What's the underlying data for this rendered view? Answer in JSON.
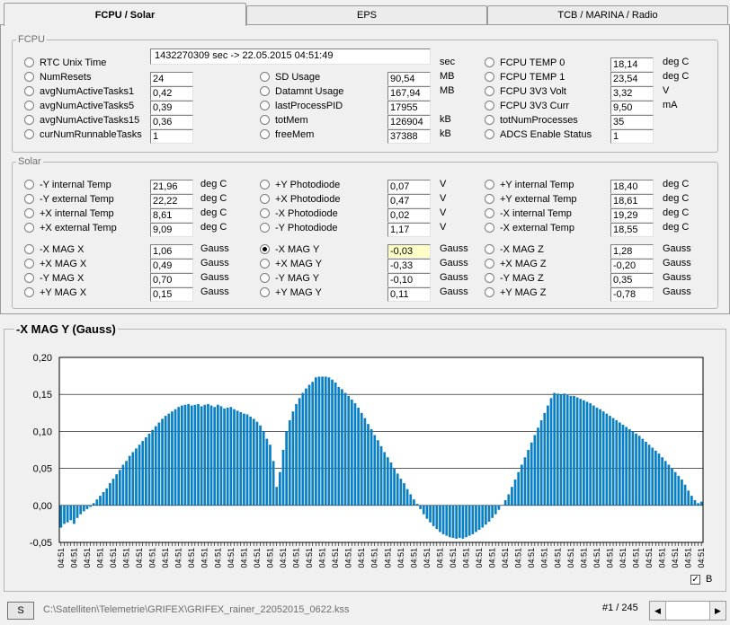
{
  "tabs": [
    "FCPU / Solar",
    "EPS",
    "TCB / MARINA / Radio"
  ],
  "fcpu": {
    "title": "FCPU",
    "rtc": {
      "label": "RTC Unix Time",
      "value": "1432270309 sec  -> 22.05.2015 04:51:49",
      "unit": "sec"
    },
    "col1": [
      {
        "label": "NumResets",
        "value": "24",
        "unit": ""
      },
      {
        "label": "avgNumActiveTasks1",
        "value": "0,42",
        "unit": ""
      },
      {
        "label": "avgNumActiveTasks5",
        "value": "0,39",
        "unit": ""
      },
      {
        "label": "avgNumActiveTasks15",
        "value": "0,36",
        "unit": ""
      },
      {
        "label": "curNumRunnableTasks",
        "value": "1",
        "unit": ""
      }
    ],
    "col2": [
      {
        "label": "SD Usage",
        "value": "90,54",
        "unit": "MB"
      },
      {
        "label": "Datamnt Usage",
        "value": "167,94",
        "unit": "MB"
      },
      {
        "label": "lastProcessPID",
        "value": "17955",
        "unit": ""
      },
      {
        "label": "totMem",
        "value": "126904",
        "unit": "kB"
      },
      {
        "label": "freeMem",
        "value": "37388",
        "unit": "kB"
      }
    ],
    "col3": [
      {
        "label": "FCPU TEMP 0",
        "value": "18,14",
        "unit": "deg C"
      },
      {
        "label": "FCPU TEMP 1",
        "value": "23,54",
        "unit": "deg C"
      },
      {
        "label": "FCPU 3V3 Volt",
        "value": "3,32",
        "unit": "V"
      },
      {
        "label": "FCPU 3V3 Curr",
        "value": "9,50",
        "unit": "mA"
      },
      {
        "label": "totNumProcesses",
        "value": "35",
        "unit": ""
      },
      {
        "label": "ADCS Enable Status",
        "value": "1",
        "unit": ""
      }
    ]
  },
  "solar": {
    "title": "Solar",
    "col1": [
      {
        "label": "-Y internal Temp",
        "value": "21,96",
        "unit": "deg C"
      },
      {
        "label": "-Y external Temp",
        "value": "22,22",
        "unit": "deg C"
      },
      {
        "label": "+X internal Temp",
        "value": "8,61",
        "unit": "deg C"
      },
      {
        "label": "+X external Temp",
        "value": "9,09",
        "unit": "deg C"
      }
    ],
    "col2": [
      {
        "label": "+Y Photodiode",
        "value": "0,07",
        "unit": "V"
      },
      {
        "label": "+X Photodiode",
        "value": "0,47",
        "unit": "V"
      },
      {
        "label": "-X Photodiode",
        "value": "0,02",
        "unit": "V"
      },
      {
        "label": "-Y Photodiode",
        "value": "1,17",
        "unit": "V"
      }
    ],
    "col3": [
      {
        "label": "+Y internal Temp",
        "value": "18,40",
        "unit": "deg C"
      },
      {
        "label": "+Y external Temp",
        "value": "18,61",
        "unit": "deg C"
      },
      {
        "label": "-X internal Temp",
        "value": "19,29",
        "unit": "deg C"
      },
      {
        "label": "-X external Temp",
        "value": "18,55",
        "unit": "deg C"
      }
    ],
    "mag1": [
      {
        "label": "-X MAG X",
        "value": "1,06",
        "unit": "Gauss"
      },
      {
        "label": "+X MAG X",
        "value": "0,49",
        "unit": "Gauss"
      },
      {
        "label": "-Y MAG X",
        "value": "0,70",
        "unit": "Gauss"
      },
      {
        "label": "+Y MAG X",
        "value": "0,15",
        "unit": "Gauss"
      }
    ],
    "mag2": [
      {
        "label": "-X MAG Y",
        "value": "-0,03",
        "unit": "Gauss",
        "selected": true
      },
      {
        "label": "+X MAG Y",
        "value": "-0,33",
        "unit": "Gauss"
      },
      {
        "label": "-Y MAG Y",
        "value": "-0,10",
        "unit": "Gauss"
      },
      {
        "label": "+Y MAG Y",
        "value": "0,11",
        "unit": "Gauss"
      }
    ],
    "mag3": [
      {
        "label": "-X MAG Z",
        "value": "1,28",
        "unit": "Gauss"
      },
      {
        "label": "+X MAG Z",
        "value": "-0,20",
        "unit": "Gauss"
      },
      {
        "label": "-Y MAG Z",
        "value": "0,35",
        "unit": "Gauss"
      },
      {
        "label": "+Y MAG Z",
        "value": "-0,78",
        "unit": "Gauss"
      }
    ]
  },
  "chart_data": {
    "type": "bar",
    "title": "-X MAG Y (Gauss)",
    "ylim": [
      -0.05,
      0.2
    ],
    "yticks": [
      "-0,05",
      "0,00",
      "0,05",
      "0,10",
      "0,15",
      "0,20"
    ],
    "grid": true,
    "values": [
      -0.03,
      -0.025,
      -0.023,
      -0.02,
      -0.025,
      -0.017,
      -0.012,
      -0.008,
      -0.005,
      -0.002,
      0.003,
      0.008,
      0.013,
      0.018,
      0.023,
      0.03,
      0.036,
      0.042,
      0.048,
      0.055,
      0.06,
      0.067,
      0.072,
      0.077,
      0.082,
      0.087,
      0.092,
      0.097,
      0.102,
      0.107,
      0.112,
      0.117,
      0.121,
      0.124,
      0.127,
      0.13,
      0.133,
      0.135,
      0.136,
      0.137,
      0.135,
      0.136,
      0.137,
      0.134,
      0.136,
      0.137,
      0.135,
      0.133,
      0.136,
      0.134,
      0.131,
      0.132,
      0.133,
      0.13,
      0.128,
      0.126,
      0.124,
      0.123,
      0.12,
      0.117,
      0.113,
      0.108,
      0.1,
      0.09,
      0.082,
      0.06,
      0.025,
      0.045,
      0.075,
      0.1,
      0.115,
      0.127,
      0.137,
      0.145,
      0.152,
      0.158,
      0.163,
      0.167,
      0.173,
      0.174,
      0.174,
      0.174,
      0.173,
      0.17,
      0.166,
      0.16,
      0.157,
      0.152,
      0.148,
      0.143,
      0.138,
      0.132,
      0.125,
      0.118,
      0.11,
      0.103,
      0.095,
      0.088,
      0.08,
      0.072,
      0.065,
      0.058,
      0.05,
      0.043,
      0.036,
      0.03,
      0.022,
      0.015,
      0.008,
      0.002,
      -0.005,
      -0.012,
      -0.018,
      -0.023,
      -0.028,
      -0.032,
      -0.036,
      -0.039,
      -0.041,
      -0.043,
      -0.044,
      -0.045,
      -0.044,
      -0.045,
      -0.043,
      -0.041,
      -0.039,
      -0.036,
      -0.033,
      -0.03,
      -0.026,
      -0.022,
      -0.017,
      -0.012,
      -0.006,
      0.0,
      0.007,
      0.015,
      0.025,
      0.035,
      0.045,
      0.055,
      0.065,
      0.075,
      0.085,
      0.095,
      0.105,
      0.115,
      0.125,
      0.135,
      0.145,
      0.152,
      0.151,
      0.15,
      0.151,
      0.149,
      0.148,
      0.148,
      0.146,
      0.144,
      0.142,
      0.14,
      0.138,
      0.135,
      0.132,
      0.13,
      0.127,
      0.124,
      0.121,
      0.118,
      0.115,
      0.112,
      0.109,
      0.106,
      0.103,
      0.1,
      0.097,
      0.094,
      0.09,
      0.086,
      0.082,
      0.078,
      0.074,
      0.07,
      0.065,
      0.06,
      0.055,
      0.05,
      0.045,
      0.04,
      0.035,
      0.028,
      0.02,
      0.013,
      0.007,
      0.003,
      0.005
    ],
    "xtick_label": "04:51"
  },
  "controls": {
    "checkbox_label": "B",
    "checkbox_mark": "✓",
    "s_button": "S",
    "file_path": "C:\\Satelliten\\Telemetrie\\GRIFEX\\GRIFEX_rainer_22052015_0622.kss",
    "page": "#1 / 245",
    "spin_left": "◀",
    "spin_right": "▶"
  }
}
